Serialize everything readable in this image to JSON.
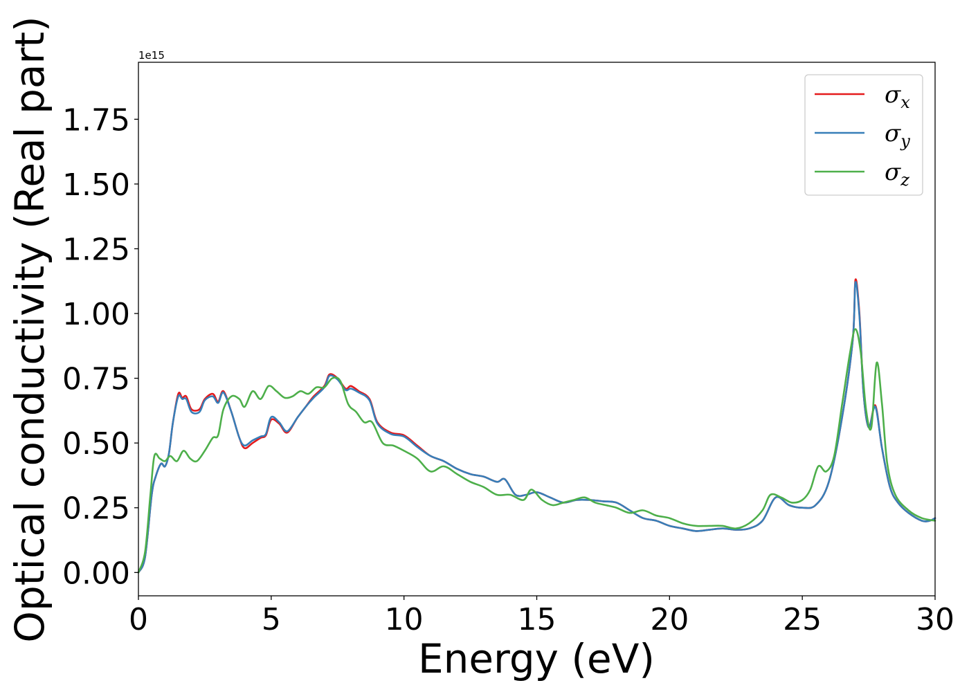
{
  "chart_data": {
    "type": "line",
    "title": "",
    "xlabel": "Energy (eV)",
    "ylabel": "Optical conductivity (Real part)",
    "y_offset_label": "1e15",
    "y_scale": 1000000000000000.0,
    "xlim": [
      0,
      30
    ],
    "ylim": [
      -0.09,
      1.97
    ],
    "xticks": [
      0,
      5,
      10,
      15,
      20,
      25,
      30
    ],
    "xtick_labels": [
      "0",
      "5",
      "10",
      "15",
      "20",
      "25",
      "30"
    ],
    "yticks": [
      0.0,
      0.25,
      0.5,
      0.75,
      1.0,
      1.25,
      1.5,
      1.75
    ],
    "ytick_labels": [
      "0.00",
      "0.25",
      "0.50",
      "0.75",
      "1.00",
      "1.25",
      "1.50",
      "1.75"
    ],
    "grid": false,
    "legend_position": "top-right",
    "legend": [
      {
        "symbol": "σ",
        "subscript": "x"
      },
      {
        "symbol": "σ",
        "subscript": "y"
      },
      {
        "symbol": "σ",
        "subscript": "z"
      }
    ],
    "series": [
      {
        "color": "#e41a1c",
        "x": [
          0,
          0.25,
          0.5,
          0.65,
          0.85,
          1.0,
          1.15,
          1.3,
          1.5,
          1.65,
          1.8,
          2.0,
          2.3,
          2.5,
          2.8,
          3.0,
          3.2,
          3.5,
          3.8,
          4.0,
          4.3,
          4.6,
          4.8,
          5.0,
          5.3,
          5.6,
          6.0,
          6.3,
          6.6,
          7.0,
          7.2,
          7.5,
          7.8,
          8.0,
          8.3,
          8.7,
          9.0,
          9.5,
          10.0,
          10.5,
          11.0,
          11.5,
          12.0,
          12.5,
          13.0,
          13.5,
          13.8,
          14.2,
          14.6,
          15.0,
          15.5,
          16.0,
          16.5,
          17.0,
          17.5,
          18.0,
          18.5,
          19.0,
          19.5,
          20.0,
          20.5,
          21.0,
          21.5,
          22.0,
          22.5,
          23.0,
          23.5,
          24.0,
          24.5,
          25.0,
          25.5,
          26.0,
          26.5,
          26.9,
          27.0,
          27.15,
          27.3,
          27.5,
          27.75,
          28.0,
          28.3,
          28.6,
          29.0,
          29.5,
          29.8,
          30.0
        ],
        "values": [
          0.0,
          0.06,
          0.3,
          0.37,
          0.42,
          0.41,
          0.46,
          0.58,
          0.69,
          0.675,
          0.68,
          0.63,
          0.63,
          0.67,
          0.69,
          0.66,
          0.7,
          0.62,
          0.52,
          0.48,
          0.5,
          0.52,
          0.53,
          0.59,
          0.575,
          0.54,
          0.6,
          0.64,
          0.68,
          0.72,
          0.765,
          0.75,
          0.71,
          0.72,
          0.7,
          0.67,
          0.58,
          0.54,
          0.53,
          0.49,
          0.45,
          0.43,
          0.4,
          0.38,
          0.37,
          0.35,
          0.36,
          0.3,
          0.3,
          0.31,
          0.29,
          0.27,
          0.28,
          0.28,
          0.275,
          0.27,
          0.24,
          0.21,
          0.2,
          0.18,
          0.17,
          0.16,
          0.165,
          0.17,
          0.165,
          0.17,
          0.2,
          0.29,
          0.26,
          0.25,
          0.26,
          0.35,
          0.6,
          0.9,
          1.13,
          1.0,
          0.7,
          0.56,
          0.645,
          0.48,
          0.33,
          0.27,
          0.23,
          0.2,
          0.2,
          0.21
        ]
      },
      {
        "color": "#377eb8",
        "x": [
          0,
          0.25,
          0.5,
          0.65,
          0.85,
          1.0,
          1.15,
          1.3,
          1.5,
          1.65,
          1.8,
          2.0,
          2.3,
          2.5,
          2.8,
          3.0,
          3.2,
          3.5,
          3.8,
          4.0,
          4.3,
          4.6,
          4.8,
          5.0,
          5.3,
          5.6,
          6.0,
          6.3,
          6.6,
          7.0,
          7.2,
          7.5,
          7.8,
          8.0,
          8.3,
          8.7,
          9.0,
          9.5,
          10.0,
          10.5,
          11.0,
          11.5,
          12.0,
          12.5,
          13.0,
          13.5,
          13.8,
          14.2,
          14.6,
          15.0,
          15.5,
          16.0,
          16.5,
          17.0,
          17.5,
          18.0,
          18.5,
          19.0,
          19.5,
          20.0,
          20.5,
          21.0,
          21.5,
          22.0,
          22.5,
          23.0,
          23.5,
          24.0,
          24.5,
          25.0,
          25.5,
          26.0,
          26.5,
          26.9,
          27.0,
          27.15,
          27.3,
          27.5,
          27.75,
          28.0,
          28.3,
          28.6,
          29.0,
          29.5,
          29.8,
          30.0
        ],
        "values": [
          0.0,
          0.06,
          0.3,
          0.37,
          0.42,
          0.41,
          0.46,
          0.58,
          0.68,
          0.67,
          0.67,
          0.62,
          0.62,
          0.665,
          0.68,
          0.655,
          0.695,
          0.62,
          0.52,
          0.49,
          0.51,
          0.525,
          0.535,
          0.6,
          0.58,
          0.545,
          0.6,
          0.64,
          0.675,
          0.715,
          0.76,
          0.745,
          0.705,
          0.71,
          0.695,
          0.665,
          0.575,
          0.535,
          0.525,
          0.485,
          0.45,
          0.43,
          0.4,
          0.38,
          0.37,
          0.35,
          0.36,
          0.3,
          0.3,
          0.31,
          0.29,
          0.27,
          0.28,
          0.28,
          0.275,
          0.27,
          0.24,
          0.21,
          0.2,
          0.18,
          0.17,
          0.16,
          0.165,
          0.17,
          0.165,
          0.17,
          0.2,
          0.29,
          0.26,
          0.25,
          0.26,
          0.35,
          0.6,
          0.9,
          1.12,
          0.99,
          0.7,
          0.56,
          0.64,
          0.48,
          0.33,
          0.27,
          0.23,
          0.2,
          0.2,
          0.21
        ]
      },
      {
        "color": "#4daf4a",
        "x": [
          0,
          0.25,
          0.45,
          0.6,
          0.8,
          1.0,
          1.2,
          1.45,
          1.7,
          1.95,
          2.2,
          2.5,
          2.8,
          3.0,
          3.2,
          3.5,
          3.8,
          4.0,
          4.3,
          4.6,
          4.9,
          5.2,
          5.5,
          5.8,
          6.1,
          6.4,
          6.7,
          7.0,
          7.3,
          7.6,
          7.9,
          8.2,
          8.5,
          8.8,
          9.2,
          9.6,
          10.0,
          10.5,
          11.0,
          11.5,
          12.0,
          12.5,
          13.0,
          13.5,
          14.0,
          14.5,
          14.8,
          15.2,
          15.6,
          16.0,
          16.4,
          16.8,
          17.2,
          17.6,
          18.0,
          18.5,
          19.0,
          19.5,
          20.0,
          20.5,
          21.0,
          21.5,
          22.0,
          22.5,
          23.0,
          23.5,
          23.8,
          24.2,
          24.6,
          25.0,
          25.3,
          25.6,
          25.9,
          26.2,
          26.5,
          26.8,
          27.0,
          27.2,
          27.4,
          27.6,
          27.8,
          28.0,
          28.2,
          28.5,
          29.0,
          29.5,
          30.0
        ],
        "values": [
          0.0,
          0.08,
          0.3,
          0.45,
          0.44,
          0.43,
          0.45,
          0.43,
          0.47,
          0.44,
          0.43,
          0.47,
          0.52,
          0.53,
          0.63,
          0.68,
          0.67,
          0.64,
          0.7,
          0.67,
          0.72,
          0.7,
          0.675,
          0.68,
          0.7,
          0.69,
          0.715,
          0.715,
          0.75,
          0.74,
          0.65,
          0.62,
          0.58,
          0.58,
          0.5,
          0.49,
          0.47,
          0.44,
          0.39,
          0.41,
          0.38,
          0.35,
          0.33,
          0.3,
          0.3,
          0.28,
          0.32,
          0.28,
          0.26,
          0.27,
          0.28,
          0.29,
          0.27,
          0.26,
          0.25,
          0.23,
          0.24,
          0.22,
          0.21,
          0.19,
          0.18,
          0.18,
          0.18,
          0.17,
          0.19,
          0.24,
          0.3,
          0.29,
          0.27,
          0.28,
          0.32,
          0.41,
          0.39,
          0.45,
          0.65,
          0.85,
          0.94,
          0.85,
          0.63,
          0.56,
          0.81,
          0.65,
          0.42,
          0.3,
          0.24,
          0.21,
          0.2
        ]
      }
    ]
  }
}
